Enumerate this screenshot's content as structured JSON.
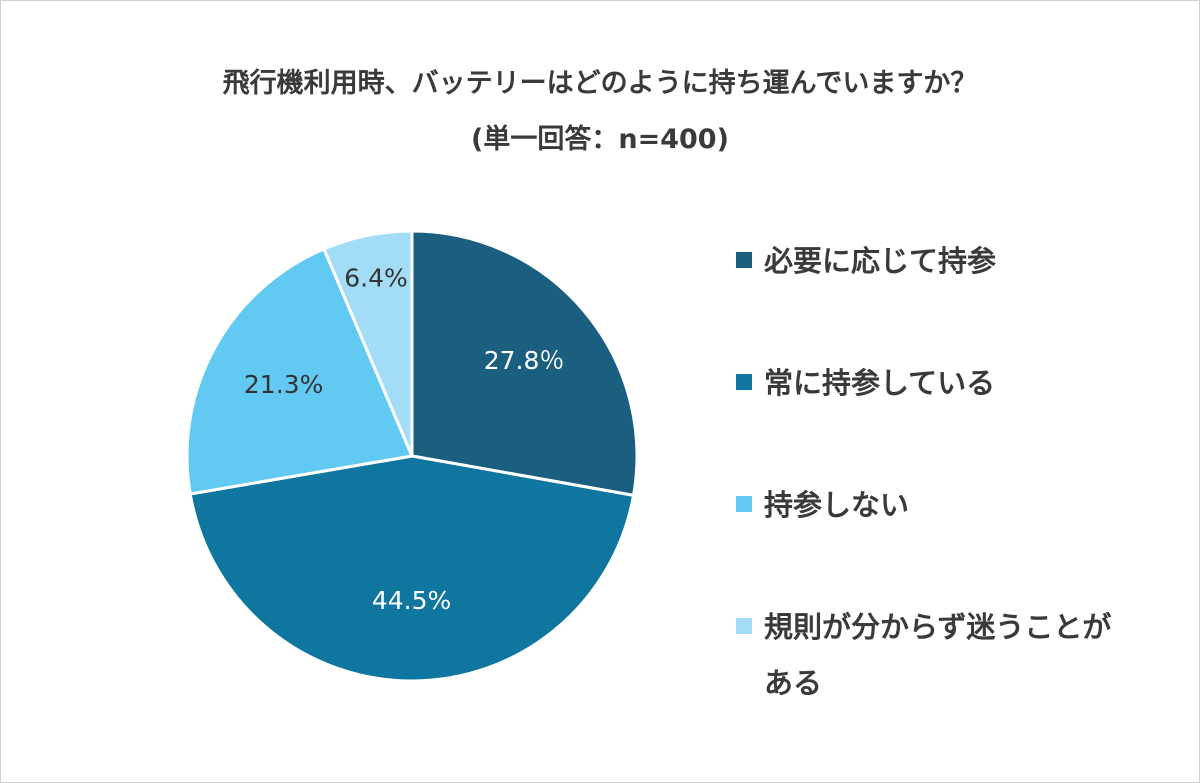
{
  "chart_data": {
    "type": "pie",
    "title": "飛行機利用時、バッテリーはどのように持ち運んでいますか？",
    "subtitle": "(単一回答：n=400)",
    "categories": [
      "必要に応じて持参",
      "常に持参している",
      "持参しない",
      "規則が分からず迷うことがある"
    ],
    "values": [
      27.8,
      44.5,
      21.3,
      6.4
    ],
    "value_labels": [
      "27.8％",
      "44.5%",
      "21.3%",
      "6.4%"
    ],
    "colors": [
      "#1a5f80",
      "#0f76a0",
      "#62c9f2",
      "#a3dcf6"
    ],
    "legend": "right"
  }
}
